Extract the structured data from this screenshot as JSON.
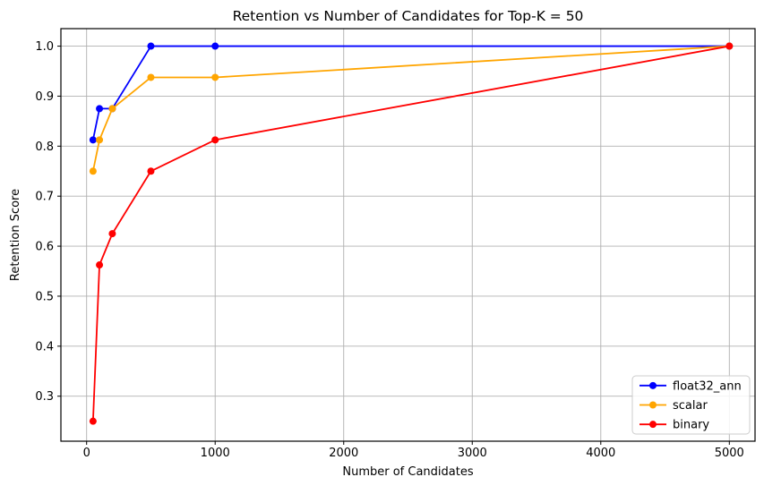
{
  "chart_data": {
    "type": "line",
    "title": "Retention vs Number of Candidates for Top-K = 50",
    "xlabel": "Number of Candidates",
    "ylabel": "Retention Score",
    "x": [
      50,
      100,
      200,
      500,
      1000,
      5000
    ],
    "series": [
      {
        "name": "float32_ann",
        "color": "#0000ff",
        "values": [
          0.8125,
          0.875,
          0.875,
          1.0,
          1.0,
          1.0
        ]
      },
      {
        "name": "scalar",
        "color": "#ffa500",
        "values": [
          0.75,
          0.8125,
          0.875,
          0.9375,
          0.9375,
          1.0
        ]
      },
      {
        "name": "binary",
        "color": "#ff0000",
        "values": [
          0.25,
          0.5625,
          0.625,
          0.75,
          0.8125,
          1.0
        ]
      }
    ],
    "xticks": {
      "values": [
        0,
        1000,
        2000,
        3000,
        4000,
        5000
      ],
      "labels": [
        "0",
        "1000",
        "2000",
        "3000",
        "4000",
        "5000"
      ]
    },
    "yticks": {
      "values": [
        0.3,
        0.4,
        0.5,
        0.6,
        0.7,
        0.8,
        0.9,
        1.0
      ],
      "labels": [
        "0.3",
        "0.4",
        "0.5",
        "0.6",
        "0.7",
        "0.8",
        "0.9",
        "1.0"
      ]
    },
    "xlim": [
      -200,
      5200
    ],
    "ylim": [
      0.21,
      1.035
    ],
    "grid": true,
    "grid_color": "#b0b0b0",
    "spine_color": "#000000",
    "legend_position": "lower right",
    "legend_border_color": "#cccccc",
    "legend_background": "#ffffff",
    "marker": "o",
    "background": "#ffffff"
  }
}
